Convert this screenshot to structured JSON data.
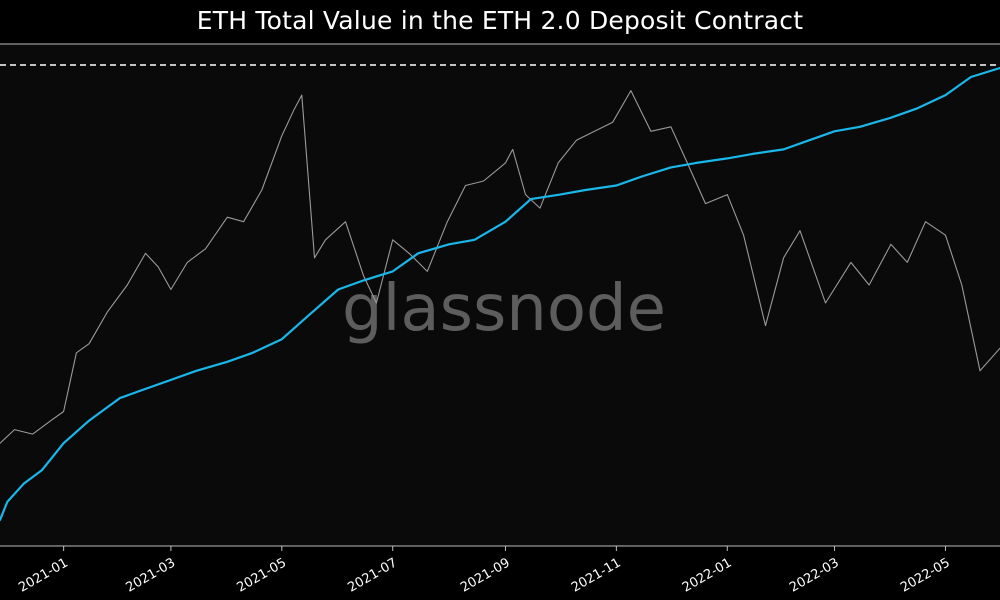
{
  "chart_data": {
    "type": "line",
    "title": "ETH Total Value in the ETH 2.0 Deposit Contract",
    "xlabel": "",
    "ylabel": "",
    "x_ticks": [
      "2021-01",
      "2021-03",
      "2021-05",
      "2021-07",
      "2021-09",
      "2021-11",
      "2022-01",
      "2022-03",
      "2022-05"
    ],
    "xlim": [
      "2020-11-27",
      "2022-05-31"
    ],
    "grid": false,
    "legend": "none",
    "watermark": "glassnode",
    "reference_line": {
      "style": "dashed",
      "color": "#ffffff",
      "value_relative": "at series max"
    },
    "series": [
      {
        "color": "#19b7ea",
        "axis": "left",
        "x": [
          "2020-11-27",
          "2020-12-01",
          "2020-12-10",
          "2020-12-20",
          "2021-01-01",
          "2021-01-15",
          "2021-02-01",
          "2021-02-15",
          "2021-03-01",
          "2021-03-15",
          "2021-04-01",
          "2021-04-15",
          "2021-05-01",
          "2021-05-15",
          "2021-06-01",
          "2021-06-15",
          "2021-07-01",
          "2021-07-15",
          "2021-08-01",
          "2021-08-15",
          "2021-09-01",
          "2021-09-15",
          "2021-10-01",
          "2021-10-15",
          "2021-11-01",
          "2021-11-15",
          "2021-12-01",
          "2021-12-15",
          "2022-01-01",
          "2022-01-15",
          "2022-02-01",
          "2022-02-15",
          "2022-03-01",
          "2022-03-15",
          "2022-04-01",
          "2022-04-15",
          "2022-05-01",
          "2022-05-15",
          "2022-05-31"
        ],
        "y": [
          0.0,
          0.04,
          0.08,
          0.11,
          0.17,
          0.22,
          0.27,
          0.29,
          0.31,
          0.33,
          0.35,
          0.37,
          0.4,
          0.45,
          0.51,
          0.53,
          0.55,
          0.59,
          0.61,
          0.62,
          0.66,
          0.71,
          0.72,
          0.73,
          0.74,
          0.76,
          0.78,
          0.79,
          0.8,
          0.81,
          0.82,
          0.84,
          0.86,
          0.87,
          0.89,
          0.91,
          0.94,
          0.98,
          1.0
        ]
      },
      {
        "color": "#9a9a9a",
        "axis": "right",
        "x": [
          "2020-11-27",
          "2020-12-05",
          "2020-12-15",
          "2020-12-25",
          "2021-01-01",
          "2021-01-08",
          "2021-01-15",
          "2021-01-25",
          "2021-02-05",
          "2021-02-15",
          "2021-02-22",
          "2021-03-01",
          "2021-03-10",
          "2021-03-20",
          "2021-04-01",
          "2021-04-10",
          "2021-04-20",
          "2021-05-01",
          "2021-05-08",
          "2021-05-12",
          "2021-05-19",
          "2021-05-25",
          "2021-06-05",
          "2021-06-15",
          "2021-06-22",
          "2021-07-01",
          "2021-07-10",
          "2021-07-20",
          "2021-07-31",
          "2021-08-10",
          "2021-08-20",
          "2021-09-01",
          "2021-09-05",
          "2021-09-12",
          "2021-09-20",
          "2021-09-30",
          "2021-10-10",
          "2021-10-20",
          "2021-10-30",
          "2021-11-09",
          "2021-11-20",
          "2021-12-01",
          "2021-12-10",
          "2021-12-20",
          "2022-01-01",
          "2022-01-10",
          "2022-01-22",
          "2022-02-01",
          "2022-02-10",
          "2022-02-24",
          "2022-03-10",
          "2022-03-20",
          "2022-04-01",
          "2022-04-10",
          "2022-04-20",
          "2022-05-01",
          "2022-05-10",
          "2022-05-20",
          "2022-05-31"
        ],
        "y": [
          0.17,
          0.2,
          0.19,
          0.22,
          0.24,
          0.37,
          0.39,
          0.46,
          0.52,
          0.59,
          0.56,
          0.51,
          0.57,
          0.6,
          0.67,
          0.66,
          0.73,
          0.85,
          0.91,
          0.94,
          0.58,
          0.62,
          0.66,
          0.54,
          0.48,
          0.62,
          0.59,
          0.55,
          0.66,
          0.74,
          0.75,
          0.79,
          0.82,
          0.72,
          0.69,
          0.79,
          0.84,
          0.86,
          0.88,
          0.95,
          0.86,
          0.87,
          0.79,
          0.7,
          0.72,
          0.63,
          0.43,
          0.58,
          0.64,
          0.48,
          0.57,
          0.52,
          0.61,
          0.57,
          0.66,
          0.63,
          0.52,
          0.33,
          0.38
        ]
      }
    ]
  }
}
